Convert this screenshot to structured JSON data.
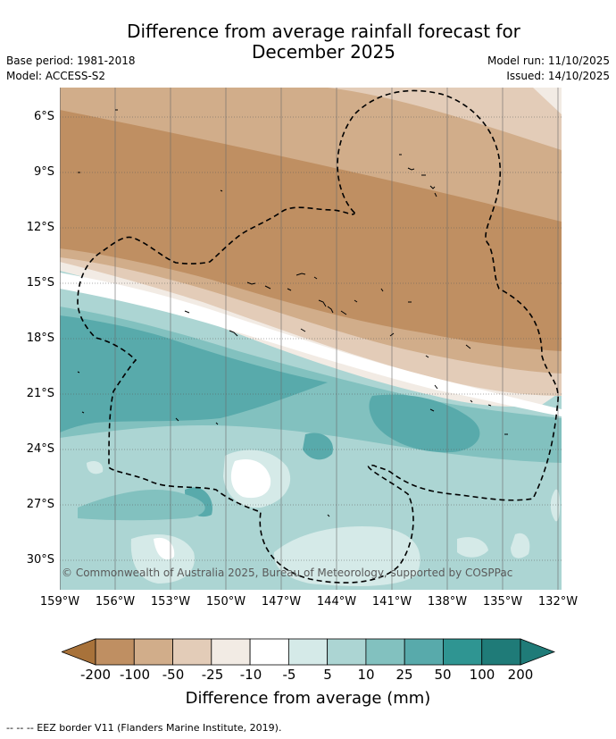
{
  "title": "Difference from average rainfall forecast for December 2025",
  "base_period": "Base period: 1981-2018",
  "model": "Model: ACCESS-S2",
  "model_run": "Model run: 11/10/2025",
  "issued": "Issued: 14/10/2025",
  "copyright": "© Commonwealth of Australia 2025, Bureau of Meteorology, supported by COSPPac",
  "lat_labels": [
    "6°S",
    "9°S",
    "12°S",
    "15°S",
    "18°S",
    "21°S",
    "24°S",
    "27°S",
    "30°S"
  ],
  "lon_labels": [
    "159°W",
    "156°W",
    "153°W",
    "150°W",
    "147°W",
    "144°W",
    "141°W",
    "138°W",
    "135°W",
    "132°W"
  ],
  "colorbar": {
    "title": "Difference from average (mm)",
    "ticks": [
      "-200",
      "-100",
      "-50",
      "-25",
      "-10",
      "-5",
      "5",
      "10",
      "25",
      "50",
      "100",
      "200"
    ],
    "colors": [
      "#a8723a",
      "#bf8f62",
      "#d1ad8a",
      "#e3ccb8",
      "#f2ebe4",
      "#ffffff",
      "#d5eae8",
      "#acd5d3",
      "#82c1bf",
      "#58aaab",
      "#2f9592",
      "#1f7b78"
    ]
  },
  "legend_note": "--  --  -- EEZ border V11 (Flanders Marine Institute, 2019)."
}
